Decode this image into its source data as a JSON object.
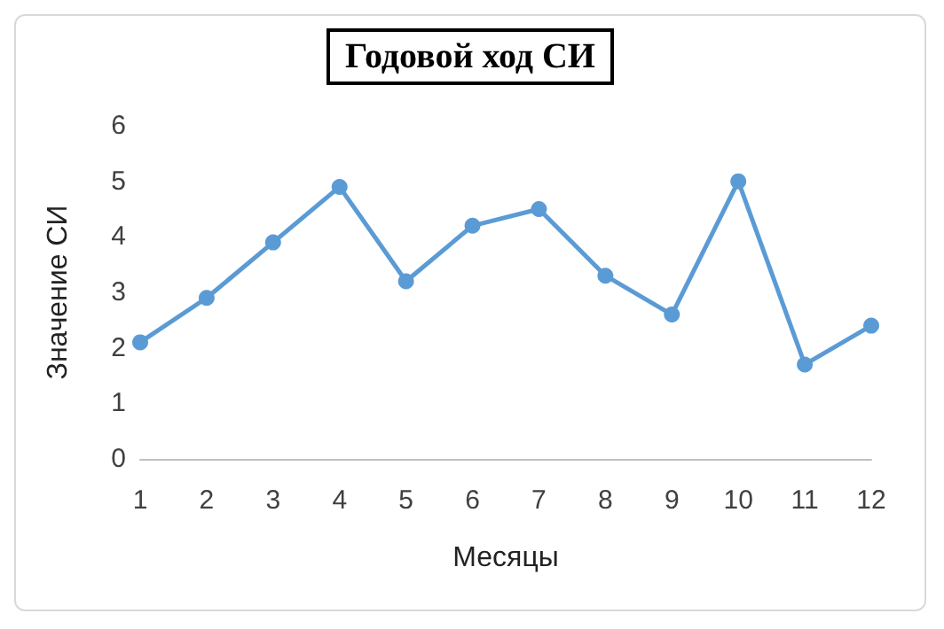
{
  "chart_data": {
    "type": "line",
    "title": "Годовой ход СИ",
    "xlabel": "Месяцы",
    "ylabel": "Значение СИ",
    "categories": [
      "1",
      "2",
      "3",
      "4",
      "5",
      "6",
      "7",
      "8",
      "9",
      "10",
      "11",
      "12"
    ],
    "series": [
      {
        "color": "#5b9bd5",
        "values": [
          2.1,
          2.9,
          3.9,
          4.9,
          3.2,
          4.2,
          4.5,
          3.3,
          2.6,
          5.0,
          1.7,
          2.4
        ]
      }
    ],
    "ylim": [
      0,
      6
    ],
    "yticks": [
      0,
      1,
      2,
      3,
      4,
      5,
      6
    ],
    "grid": false,
    "marker": "circle",
    "line_style": "solid"
  }
}
